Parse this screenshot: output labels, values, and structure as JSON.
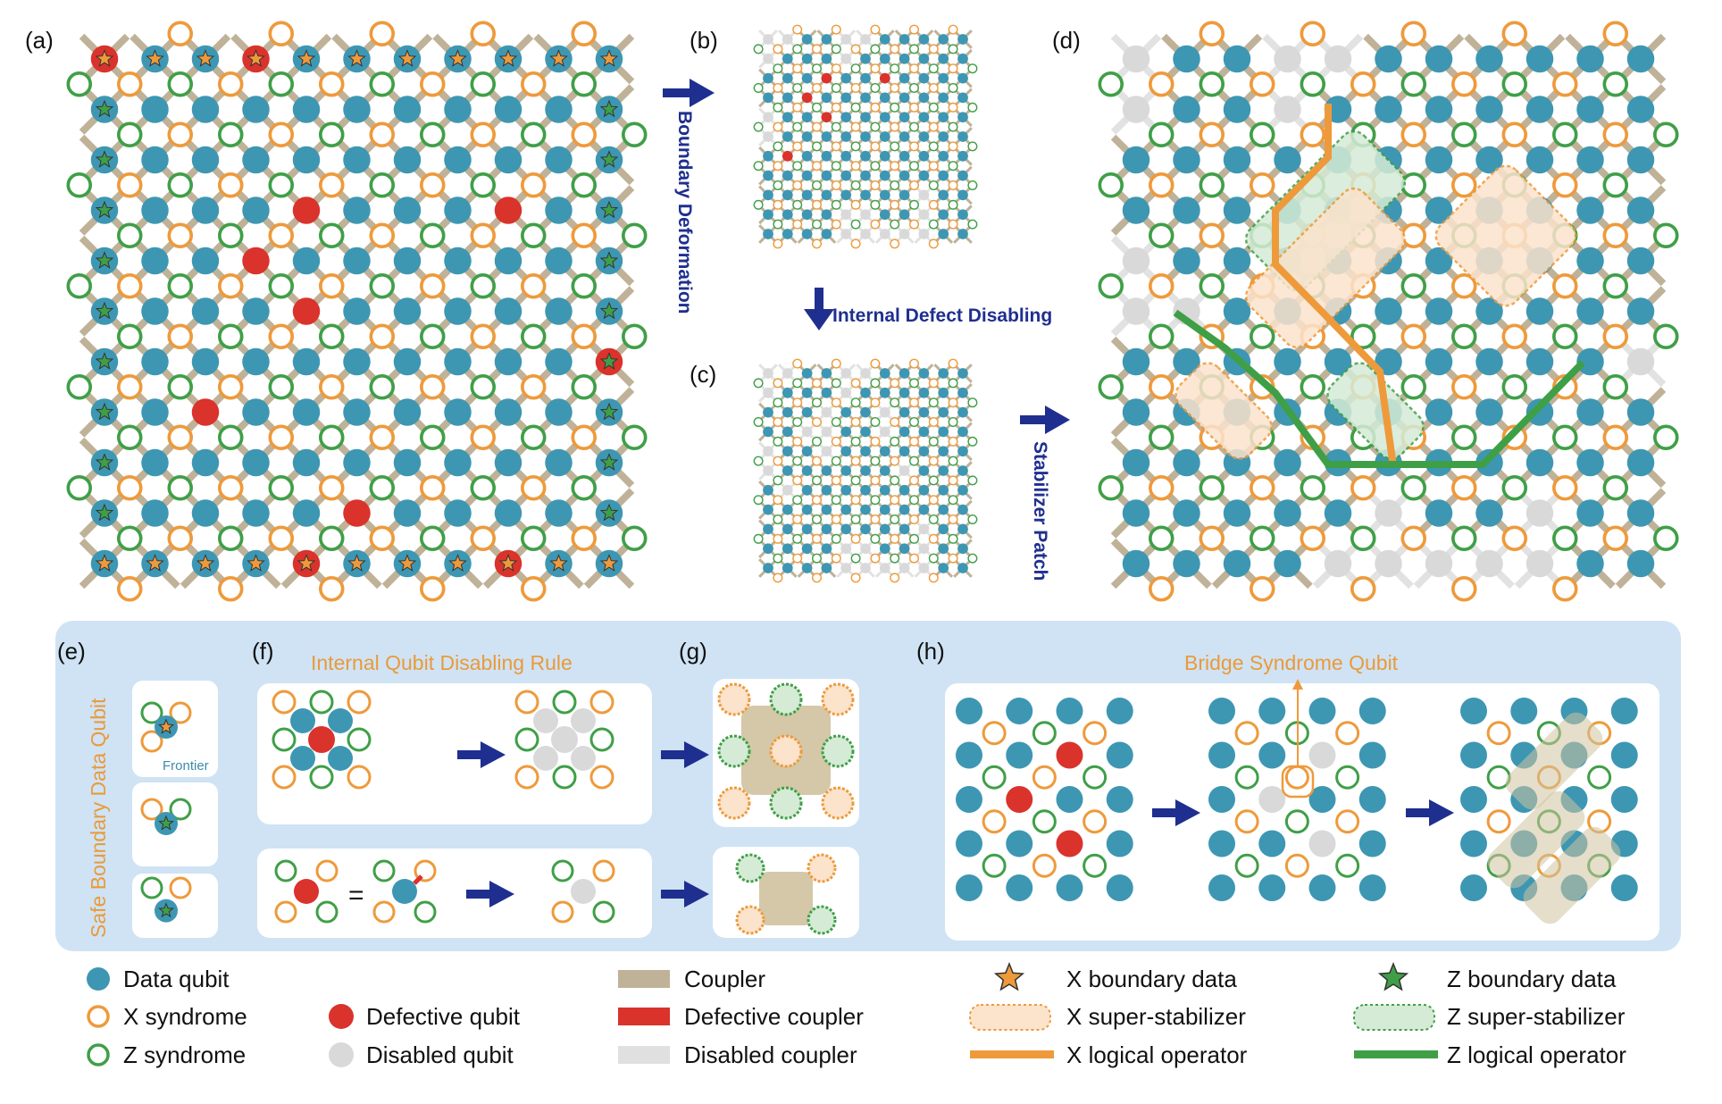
{
  "colors": {
    "data": "#3d97b3",
    "x_syndrome": "#ee9a3b",
    "z_syndrome": "#3f9f47",
    "defect": "#d9332c",
    "disabled": "#d9d9d9",
    "coupler": "#bfb298",
    "defect_coupler": "#d9332c",
    "panel_bg": "#cfe3f4",
    "arrow": "#1f2f8f",
    "x_logical": "#ee9a3b",
    "z_logical": "#3f9f47"
  },
  "panels": {
    "a": "(a)",
    "b": "(b)",
    "c": "(c)",
    "d": "(d)",
    "e": "(e)",
    "f": "(f)",
    "g": "(g)",
    "h": "(h)"
  },
  "arrows": {
    "boundary_deformation": "Boundary Deformation",
    "internal_defect_disabling": "Internal Defect Disabling",
    "stabilizer_patch": "Stabilizer Patch"
  },
  "subtitles": {
    "safe_boundary": "Safe Boundary Data Qubit",
    "frontier": "Frontier",
    "internal_rule": "Internal Qubit Disabling Rule",
    "bridge": "Bridge Syndrome Qubit",
    "equals": "="
  },
  "legend": {
    "data_qubit": "Data qubit",
    "x_syndrome": "X syndrome",
    "z_syndrome": "Z syndrome",
    "defective_qubit": "Defective qubit",
    "disabled_qubit": "Disabled qubit",
    "coupler": "Coupler",
    "defective_coupler": "Defective coupler",
    "disabled_coupler": "Disabled coupler",
    "x_boundary": "X boundary data",
    "x_super": "X super-stabilizer",
    "x_logical": "X logical operator",
    "z_boundary": "Z boundary data",
    "z_super": "Z super-stabilizer",
    "z_logical": "Z logical operator"
  }
}
